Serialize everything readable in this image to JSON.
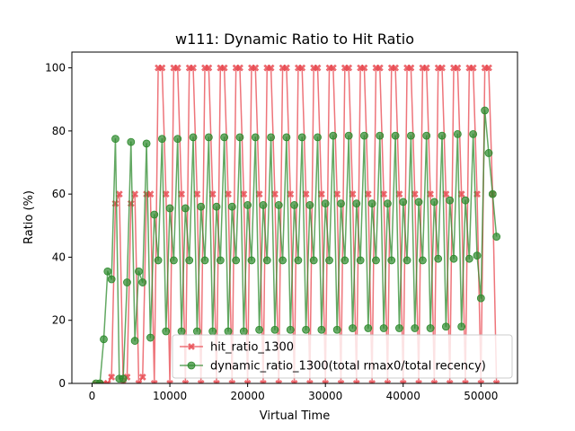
{
  "chart_data": {
    "type": "line",
    "title": "w111: Dynamic Ratio to Hit Ratio",
    "xlabel": "Virtual Time",
    "ylabel": "Ratio (%)",
    "xlim": [
      -2600,
      54700
    ],
    "ylim": [
      0,
      105
    ],
    "xticks": [
      0,
      10000,
      20000,
      30000,
      40000,
      50000
    ],
    "yticks": [
      0,
      20,
      40,
      60,
      80,
      100
    ],
    "legend_position": "lower-right",
    "grid": false,
    "series": [
      {
        "name": "hit_ratio_1300",
        "color": "#e8464d",
        "marker": "X",
        "x": [
          500,
          1000,
          1500,
          2000,
          2500,
          3000,
          3500,
          4000,
          4500,
          5000,
          5500,
          6000,
          6500,
          7000,
          7500,
          8000,
          8500,
          9000,
          9500,
          10000,
          10500,
          11000,
          11500,
          12000,
          12500,
          13000,
          13500,
          14000,
          14500,
          15000,
          15500,
          16000,
          16500,
          17000,
          17500,
          18000,
          18500,
          19000,
          19500,
          20000,
          20500,
          21000,
          21500,
          22000,
          22500,
          23000,
          23500,
          24000,
          24500,
          25000,
          25500,
          26000,
          26500,
          27000,
          27500,
          28000,
          28500,
          29000,
          29500,
          30000,
          30500,
          31000,
          31500,
          32000,
          32500,
          33000,
          33500,
          34000,
          34500,
          35000,
          35500,
          36000,
          36500,
          37000,
          37500,
          38000,
          38500,
          39000,
          39500,
          40000,
          40500,
          41000,
          41500,
          42000,
          42500,
          43000,
          43500,
          44000,
          44500,
          45000,
          45500,
          46000,
          46500,
          47000,
          47500,
          48000,
          48500,
          49000,
          49500,
          50000,
          50500,
          51000,
          51500,
          52000
        ],
        "y": [
          0,
          0,
          0,
          0,
          2,
          57,
          60,
          0,
          2,
          57,
          60,
          0,
          2,
          60,
          60,
          0,
          100,
          100,
          60,
          0,
          100,
          100,
          60,
          0,
          100,
          100,
          60,
          0,
          100,
          100,
          60,
          0,
          100,
          100,
          60,
          0,
          100,
          100,
          60,
          0,
          100,
          100,
          60,
          0,
          100,
          100,
          60,
          0,
          100,
          100,
          60,
          0,
          100,
          100,
          60,
          0,
          100,
          100,
          60,
          0,
          100,
          100,
          60,
          0,
          100,
          100,
          60,
          0,
          100,
          100,
          60,
          0,
          100,
          100,
          60,
          0,
          100,
          100,
          60,
          0,
          100,
          100,
          60,
          0,
          100,
          100,
          60,
          0,
          100,
          100,
          60,
          0,
          100,
          100,
          60,
          0,
          100,
          100,
          60,
          0,
          100,
          100,
          60,
          0
        ]
      },
      {
        "name": "dynamic_ratio_1300(total rmax0/total recency)",
        "color": "#2e8b2e",
        "marker": "o",
        "x": [
          500,
          1000,
          1500,
          2000,
          2500,
          3000,
          3500,
          4000,
          4500,
          5000,
          5500,
          6000,
          6500,
          7000,
          7500,
          8000,
          8500,
          9000,
          9500,
          10000,
          10500,
          11000,
          11500,
          12000,
          12500,
          13000,
          13500,
          14000,
          14500,
          15000,
          15500,
          16000,
          16500,
          17000,
          17500,
          18000,
          18500,
          19000,
          19500,
          20000,
          20500,
          21000,
          21500,
          22000,
          22500,
          23000,
          23500,
          24000,
          24500,
          25000,
          25500,
          26000,
          26500,
          27000,
          27500,
          28000,
          28500,
          29000,
          29500,
          30000,
          30500,
          31000,
          31500,
          32000,
          32500,
          33000,
          33500,
          34000,
          34500,
          35000,
          35500,
          36000,
          36500,
          37000,
          37500,
          38000,
          38500,
          39000,
          39500,
          40000,
          40500,
          41000,
          41500,
          42000,
          42500,
          43000,
          43500,
          44000,
          44500,
          45000,
          45500,
          46000,
          46500,
          47000,
          47500,
          48000,
          48500,
          49000,
          49500,
          50000,
          50500,
          51000,
          51500,
          52000
        ],
        "y": [
          0,
          0,
          14,
          35.5,
          33,
          77.5,
          1.5,
          1.5,
          32,
          76.5,
          13.5,
          35.5,
          32,
          76,
          14.5,
          53.5,
          39,
          77.5,
          16.5,
          55.5,
          39,
          77.5,
          16.5,
          55.5,
          39,
          78,
          16.5,
          56,
          39,
          78,
          16.5,
          56,
          39,
          78,
          16.5,
          56,
          39,
          78,
          16.5,
          56.5,
          39,
          78,
          17,
          56.5,
          39,
          78,
          17,
          56.5,
          39,
          78,
          17,
          56.5,
          39,
          78,
          17,
          56.5,
          39,
          78,
          17,
          57,
          39,
          78.5,
          17,
          57,
          39,
          78.5,
          17.5,
          57,
          39,
          78.5,
          17.5,
          57,
          39,
          78.5,
          17.5,
          57,
          39,
          78.5,
          17.5,
          57.5,
          39,
          78.5,
          17.5,
          57.5,
          39,
          78.5,
          17.5,
          57.5,
          39.5,
          78.5,
          18,
          58,
          39.5,
          79,
          18,
          58,
          39.5,
          79,
          40.5,
          27,
          86.5,
          73,
          60,
          46.5
        ]
      }
    ]
  }
}
